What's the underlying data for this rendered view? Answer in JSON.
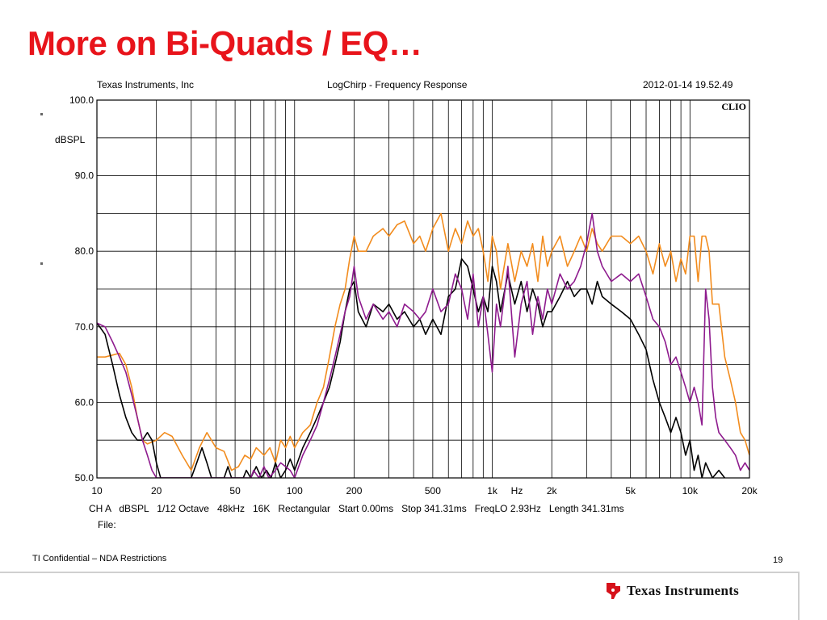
{
  "slide": {
    "title": "More on Bi-Quads / EQ…",
    "footer_text": "TI Confidential – NDA Restrictions",
    "page_number": "19",
    "logo_text": "Texas Instruments",
    "title_color": "#e8141b"
  },
  "chart_data": {
    "type": "line",
    "header_left": "Texas Instruments, Inc",
    "header_center": "LogChirp - Frequency Response",
    "header_right": "2012-01-14 19.52.49",
    "brand_label": "CLIO",
    "ylabel": "dBSPL",
    "xlabel": "Hz",
    "x_scale": "log",
    "xlim": [
      10,
      20000
    ],
    "ylim": [
      50,
      100
    ],
    "grid": true,
    "y_ticks": [
      {
        "value": 100,
        "label": "100.0"
      },
      {
        "value": 90,
        "label": "90.0"
      },
      {
        "value": 80,
        "label": "80.0"
      },
      {
        "value": 70,
        "label": "70.0"
      },
      {
        "value": 60,
        "label": "60.0"
      },
      {
        "value": 50,
        "label": "50.0"
      }
    ],
    "x_ticks": [
      {
        "value": 10,
        "label": "10"
      },
      {
        "value": 20,
        "label": "20"
      },
      {
        "value": 50,
        "label": "50"
      },
      {
        "value": 100,
        "label": "100"
      },
      {
        "value": 200,
        "label": "200"
      },
      {
        "value": 500,
        "label": "500"
      },
      {
        "value": 1000,
        "label": "1k"
      },
      {
        "value": 2000,
        "label": "2k"
      },
      {
        "value": 5000,
        "label": "5k"
      },
      {
        "value": 10000,
        "label": "10k"
      },
      {
        "value": 20000,
        "label": "20k"
      }
    ],
    "footer_line1": "CH A   dBSPL   1/12 Octave   48kHz   16K   Rectangular   Start 0.00ms   Stop 341.31ms   FreqLO 2.93Hz   Length 341.31ms",
    "footer_line2": "File:",
    "series": [
      {
        "color": "#f28c1e",
        "points": [
          [
            10,
            66
          ],
          [
            11,
            66
          ],
          [
            13,
            66.5
          ],
          [
            14,
            65
          ],
          [
            15,
            62
          ],
          [
            16,
            58
          ],
          [
            17,
            55
          ],
          [
            18,
            54.5
          ],
          [
            20,
            55
          ],
          [
            22,
            56
          ],
          [
            24,
            55.5
          ],
          [
            27,
            53
          ],
          [
            30,
            51
          ],
          [
            33,
            54
          ],
          [
            36,
            56
          ],
          [
            40,
            54
          ],
          [
            44,
            53.5
          ],
          [
            48,
            51
          ],
          [
            52,
            51.5
          ],
          [
            56,
            53
          ],
          [
            60,
            52.5
          ],
          [
            64,
            54
          ],
          [
            70,
            53
          ],
          [
            75,
            54
          ],
          [
            80,
            52
          ],
          [
            85,
            55
          ],
          [
            90,
            54
          ],
          [
            95,
            55.5
          ],
          [
            100,
            54
          ],
          [
            110,
            56
          ],
          [
            120,
            57
          ],
          [
            130,
            60
          ],
          [
            140,
            62
          ],
          [
            150,
            66
          ],
          [
            160,
            70
          ],
          [
            170,
            73
          ],
          [
            180,
            75
          ],
          [
            190,
            79
          ],
          [
            200,
            82
          ],
          [
            210,
            80
          ],
          [
            230,
            80
          ],
          [
            250,
            82
          ],
          [
            280,
            83
          ],
          [
            300,
            82
          ],
          [
            330,
            83.5
          ],
          [
            360,
            84
          ],
          [
            400,
            81
          ],
          [
            430,
            82
          ],
          [
            460,
            80
          ],
          [
            500,
            83
          ],
          [
            550,
            85
          ],
          [
            600,
            80
          ],
          [
            650,
            83
          ],
          [
            700,
            81
          ],
          [
            750,
            84
          ],
          [
            800,
            82
          ],
          [
            850,
            83
          ],
          [
            900,
            80
          ],
          [
            950,
            76
          ],
          [
            1000,
            82
          ],
          [
            1050,
            80
          ],
          [
            1100,
            75
          ],
          [
            1200,
            81
          ],
          [
            1300,
            76
          ],
          [
            1400,
            80
          ],
          [
            1500,
            78
          ],
          [
            1600,
            81
          ],
          [
            1700,
            76
          ],
          [
            1800,
            82
          ],
          [
            1900,
            78
          ],
          [
            2000,
            80
          ],
          [
            2200,
            82
          ],
          [
            2400,
            78
          ],
          [
            2600,
            80
          ],
          [
            2800,
            82
          ],
          [
            3000,
            80
          ],
          [
            3200,
            83
          ],
          [
            3400,
            81
          ],
          [
            3600,
            80
          ],
          [
            4000,
            82
          ],
          [
            4500,
            82
          ],
          [
            5000,
            81
          ],
          [
            5500,
            82
          ],
          [
            6000,
            80
          ],
          [
            6500,
            77
          ],
          [
            7000,
            81
          ],
          [
            7500,
            78
          ],
          [
            8000,
            80
          ],
          [
            8500,
            76
          ],
          [
            9000,
            79
          ],
          [
            9500,
            77
          ],
          [
            10000,
            82
          ],
          [
            10500,
            82
          ],
          [
            11000,
            76
          ],
          [
            11500,
            82
          ],
          [
            12000,
            82
          ],
          [
            12500,
            80
          ],
          [
            13000,
            73
          ],
          [
            14000,
            73
          ],
          [
            15000,
            66
          ],
          [
            16000,
            63
          ],
          [
            17000,
            60
          ],
          [
            18000,
            56
          ],
          [
            19000,
            55
          ],
          [
            20000,
            53
          ]
        ]
      },
      {
        "color": "#000000",
        "points": [
          [
            10,
            70.5
          ],
          [
            11,
            69
          ],
          [
            12,
            65
          ],
          [
            13,
            61
          ],
          [
            14,
            58
          ],
          [
            15,
            56
          ],
          [
            16,
            55
          ],
          [
            17,
            55
          ],
          [
            18,
            56
          ],
          [
            19,
            55
          ],
          [
            20,
            52
          ],
          [
            21,
            50
          ],
          [
            30,
            50
          ],
          [
            32,
            52
          ],
          [
            34,
            54
          ],
          [
            36,
            52
          ],
          [
            38,
            50
          ],
          [
            44,
            50
          ],
          [
            46,
            51.5
          ],
          [
            48,
            50
          ],
          [
            55,
            50
          ],
          [
            57,
            51
          ],
          [
            60,
            50
          ],
          [
            64,
            51.5
          ],
          [
            68,
            50
          ],
          [
            72,
            51
          ],
          [
            76,
            50
          ],
          [
            80,
            52
          ],
          [
            85,
            50
          ],
          [
            90,
            51
          ],
          [
            95,
            52.5
          ],
          [
            100,
            51
          ],
          [
            110,
            54
          ],
          [
            120,
            56
          ],
          [
            130,
            58
          ],
          [
            140,
            60
          ],
          [
            150,
            62
          ],
          [
            160,
            65
          ],
          [
            170,
            68
          ],
          [
            180,
            72
          ],
          [
            190,
            75
          ],
          [
            200,
            76
          ],
          [
            210,
            72
          ],
          [
            230,
            70
          ],
          [
            250,
            73
          ],
          [
            280,
            72
          ],
          [
            300,
            73
          ],
          [
            330,
            71
          ],
          [
            360,
            72
          ],
          [
            400,
            70
          ],
          [
            430,
            71
          ],
          [
            460,
            69
          ],
          [
            500,
            71
          ],
          [
            550,
            69
          ],
          [
            600,
            74
          ],
          [
            650,
            75
          ],
          [
            700,
            79
          ],
          [
            750,
            78
          ],
          [
            800,
            75
          ],
          [
            850,
            72
          ],
          [
            900,
            74
          ],
          [
            950,
            72
          ],
          [
            1000,
            78
          ],
          [
            1050,
            76
          ],
          [
            1100,
            72
          ],
          [
            1200,
            77
          ],
          [
            1300,
            73
          ],
          [
            1400,
            76
          ],
          [
            1500,
            72
          ],
          [
            1600,
            75
          ],
          [
            1700,
            73
          ],
          [
            1800,
            70
          ],
          [
            1900,
            72
          ],
          [
            2000,
            72
          ],
          [
            2200,
            74
          ],
          [
            2400,
            76
          ],
          [
            2600,
            74
          ],
          [
            2800,
            75
          ],
          [
            3000,
            75
          ],
          [
            3200,
            73
          ],
          [
            3400,
            76
          ],
          [
            3600,
            74
          ],
          [
            4000,
            73
          ],
          [
            4500,
            72
          ],
          [
            5000,
            71
          ],
          [
            5500,
            69
          ],
          [
            6000,
            67
          ],
          [
            6500,
            63
          ],
          [
            7000,
            60
          ],
          [
            7500,
            58
          ],
          [
            8000,
            56
          ],
          [
            8500,
            58
          ],
          [
            9000,
            56
          ],
          [
            9500,
            53
          ],
          [
            10000,
            55
          ],
          [
            10500,
            51
          ],
          [
            11000,
            53
          ],
          [
            11500,
            50
          ],
          [
            12000,
            52
          ],
          [
            13000,
            50
          ],
          [
            14000,
            51
          ],
          [
            15000,
            50
          ]
        ]
      },
      {
        "color": "#8e1b8e",
        "points": [
          [
            10,
            70.5
          ],
          [
            11,
            70
          ],
          [
            12,
            68
          ],
          [
            13,
            66
          ],
          [
            14,
            64
          ],
          [
            15,
            61
          ],
          [
            16,
            58
          ],
          [
            17,
            55
          ],
          [
            18,
            53
          ],
          [
            19,
            51
          ],
          [
            20,
            50
          ],
          [
            60,
            50
          ],
          [
            62,
            51
          ],
          [
            66,
            50
          ],
          [
            70,
            51.5
          ],
          [
            74,
            50
          ],
          [
            80,
            51
          ],
          [
            85,
            52
          ],
          [
            90,
            51.5
          ],
          [
            95,
            51
          ],
          [
            100,
            50
          ],
          [
            110,
            53
          ],
          [
            120,
            55
          ],
          [
            130,
            57
          ],
          [
            140,
            60
          ],
          [
            150,
            63
          ],
          [
            160,
            66
          ],
          [
            170,
            69
          ],
          [
            180,
            72
          ],
          [
            190,
            74
          ],
          [
            200,
            78
          ],
          [
            210,
            74
          ],
          [
            230,
            71
          ],
          [
            250,
            73
          ],
          [
            280,
            71
          ],
          [
            300,
            72
          ],
          [
            330,
            70
          ],
          [
            360,
            73
          ],
          [
            400,
            72
          ],
          [
            430,
            71
          ],
          [
            460,
            72
          ],
          [
            500,
            75
          ],
          [
            550,
            72
          ],
          [
            600,
            73
          ],
          [
            650,
            77
          ],
          [
            700,
            75
          ],
          [
            750,
            71
          ],
          [
            800,
            77
          ],
          [
            850,
            70
          ],
          [
            900,
            74
          ],
          [
            950,
            69
          ],
          [
            1000,
            64
          ],
          [
            1050,
            73
          ],
          [
            1100,
            70
          ],
          [
            1200,
            78
          ],
          [
            1300,
            66
          ],
          [
            1400,
            73
          ],
          [
            1500,
            76
          ],
          [
            1600,
            69
          ],
          [
            1700,
            74
          ],
          [
            1800,
            71
          ],
          [
            1900,
            75
          ],
          [
            2000,
            73
          ],
          [
            2200,
            77
          ],
          [
            2400,
            75
          ],
          [
            2600,
            76
          ],
          [
            2800,
            78
          ],
          [
            3000,
            81
          ],
          [
            3200,
            85
          ],
          [
            3400,
            80
          ],
          [
            3600,
            78
          ],
          [
            4000,
            76
          ],
          [
            4500,
            77
          ],
          [
            5000,
            76
          ],
          [
            5500,
            77
          ],
          [
            6000,
            74
          ],
          [
            6500,
            71
          ],
          [
            7000,
            70
          ],
          [
            7500,
            68
          ],
          [
            8000,
            65
          ],
          [
            8500,
            66
          ],
          [
            9000,
            64
          ],
          [
            9500,
            62
          ],
          [
            10000,
            60
          ],
          [
            10500,
            62
          ],
          [
            11000,
            60
          ],
          [
            11500,
            57
          ],
          [
            12000,
            75
          ],
          [
            12500,
            71
          ],
          [
            13000,
            62
          ],
          [
            13500,
            58
          ],
          [
            14000,
            56
          ],
          [
            15000,
            55
          ],
          [
            16000,
            54
          ],
          [
            17000,
            53
          ],
          [
            18000,
            51
          ],
          [
            19000,
            52
          ],
          [
            20000,
            51
          ]
        ]
      }
    ]
  }
}
